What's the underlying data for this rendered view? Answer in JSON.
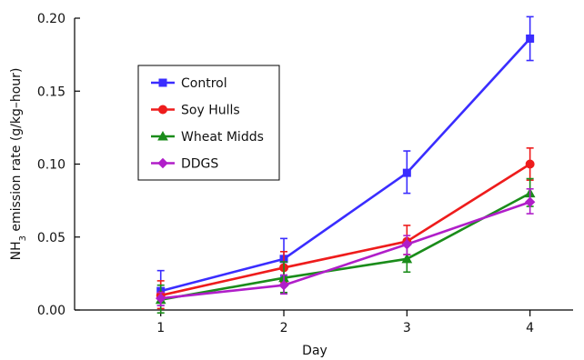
{
  "chart_data": {
    "type": "line",
    "xlabel": "Day",
    "ylabel_main": "NH",
    "ylabel_sub": "3",
    "ylabel_rest": " emission rate (g/kg–hour)",
    "x": [
      1,
      2,
      3,
      4
    ],
    "x_tick_labels": [
      "1",
      "2",
      "3",
      "4"
    ],
    "xlim": [
      0.3,
      4.35
    ],
    "ylim": [
      0,
      0.2
    ],
    "y_ticks": [
      0,
      0.05,
      0.1,
      0.15,
      0.2
    ],
    "y_tick_labels": [
      "0.00",
      "0.05",
      "0.10",
      "0.15",
      "0.20"
    ],
    "grid": false,
    "legend_position": "upper-left",
    "series": [
      {
        "name": "Control",
        "color": "#3a2dff",
        "marker": "square",
        "values": [
          0.013,
          0.035,
          0.094,
          0.186
        ],
        "err_low": [
          0.003,
          0.023,
          0.08,
          0.171
        ],
        "err_high": [
          0.027,
          0.049,
          0.109,
          0.201
        ]
      },
      {
        "name": "Soy Hulls",
        "color": "#ee1c1c",
        "marker": "circle",
        "values": [
          0.01,
          0.029,
          0.047,
          0.1
        ],
        "err_low": [
          0.001,
          0.019,
          0.038,
          0.089
        ],
        "err_high": [
          0.02,
          0.04,
          0.058,
          0.111
        ]
      },
      {
        "name": "Wheat Midds",
        "color": "#1a8c1a",
        "marker": "triangle",
        "values": [
          0.007,
          0.022,
          0.035,
          0.08
        ],
        "err_low": [
          -0.002,
          0.012,
          0.026,
          0.071
        ],
        "err_high": [
          0.017,
          0.033,
          0.045,
          0.09
        ]
      },
      {
        "name": "DDGS",
        "color": "#b01ec9",
        "marker": "diamond",
        "values": [
          0.008,
          0.017,
          0.045,
          0.074
        ],
        "err_low": [
          0.003,
          0.011,
          0.038,
          0.066
        ],
        "err_high": [
          0.012,
          0.024,
          0.051,
          0.083
        ]
      }
    ]
  }
}
